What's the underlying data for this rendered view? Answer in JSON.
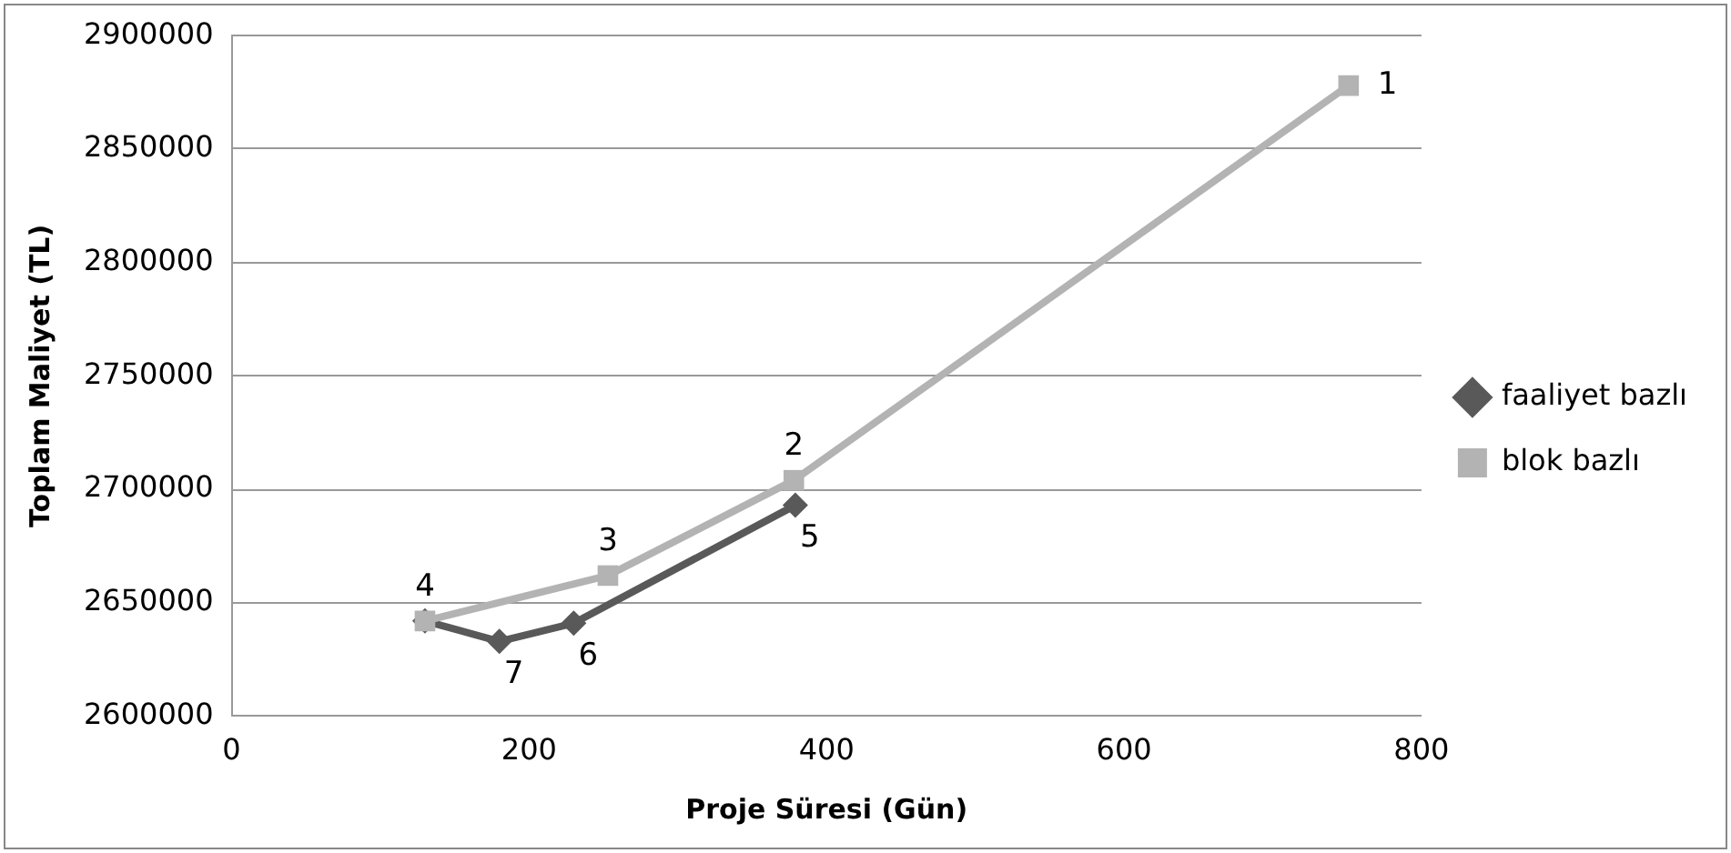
{
  "chart_data": {
    "type": "line",
    "xlabel": "Proje Süresi (Gün)",
    "ylabel": "Toplam Maliyet (TL)",
    "xlim": [
      0,
      800
    ],
    "xticks": [
      0,
      200,
      400,
      600,
      800
    ],
    "ylim": [
      2600000,
      2900000
    ],
    "yticks": [
      2600000,
      2650000,
      2700000,
      2750000,
      2800000,
      2850000,
      2900000
    ],
    "grid": "y",
    "legend": "right",
    "series": [
      {
        "name": "faaliyet bazlı",
        "color": "#595959",
        "marker": "diamond",
        "x": [
          130,
          180,
          230,
          379
        ],
        "values": [
          2642000,
          2633000,
          2641000,
          2693000
        ]
      },
      {
        "name": "blok bazlı",
        "color": "#b3b3b3",
        "marker": "square",
        "x": [
          130,
          253,
          378,
          751
        ],
        "values": [
          2642000,
          2662000,
          2704000,
          2878000
        ]
      }
    ],
    "annotations": [
      {
        "text": "7",
        "x": 180,
        "y": 2633000
      },
      {
        "text": "6",
        "x": 230,
        "y": 2641000
      },
      {
        "text": "5",
        "x": 379,
        "y": 2693000
      },
      {
        "text": "4",
        "x": 130,
        "y": 2642000
      },
      {
        "text": "3",
        "x": 253,
        "y": 2662000
      },
      {
        "text": "2",
        "x": 378,
        "y": 2704000
      },
      {
        "text": "1",
        "x": 751,
        "y": 2878000
      }
    ]
  }
}
